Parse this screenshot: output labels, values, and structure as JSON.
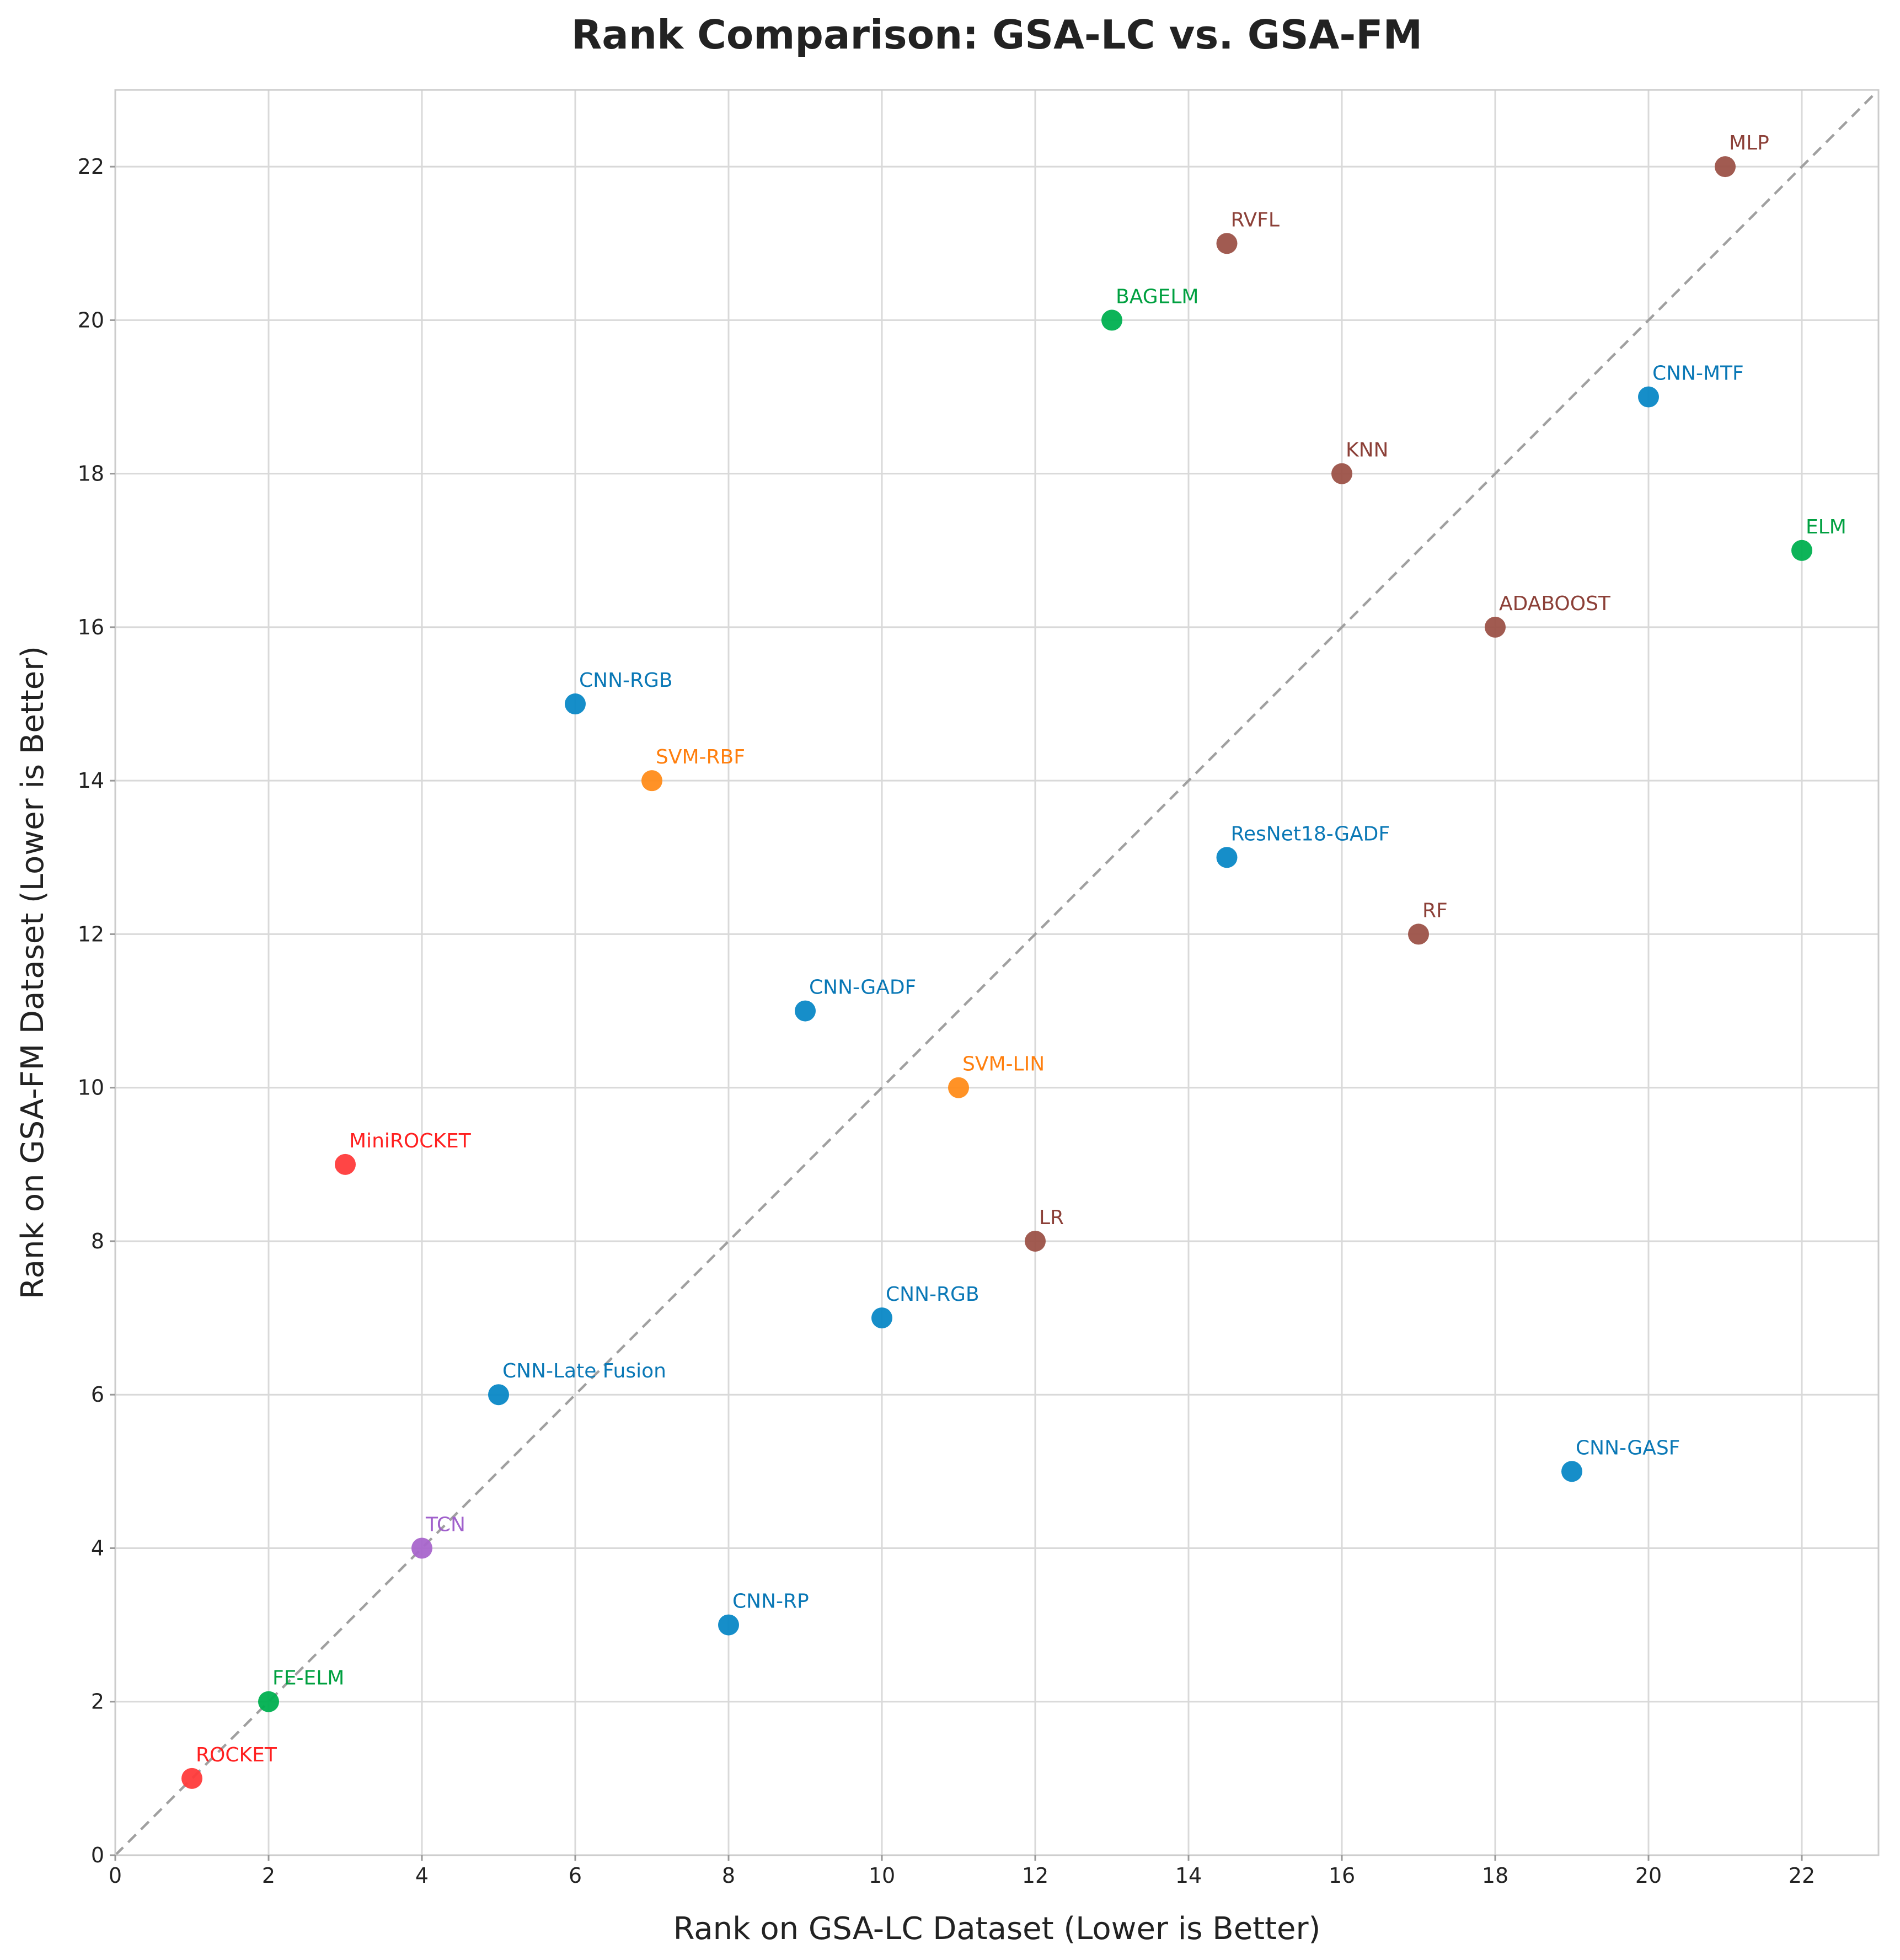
{
  "chart_data": {
    "type": "scatter",
    "title": "Rank Comparison: GSA-LC vs. GSA-FM",
    "xlabel": "Rank on GSA-LC Dataset (Lower is Better)",
    "ylabel": "Rank on GSA-FM Dataset (Lower is Better)",
    "xlim": [
      0,
      23
    ],
    "ylim": [
      0,
      23
    ],
    "xticks": [
      0,
      2,
      4,
      6,
      8,
      10,
      12,
      14,
      16,
      18,
      20,
      22
    ],
    "yticks": [
      0,
      2,
      4,
      6,
      8,
      10,
      12,
      14,
      16,
      18,
      20,
      22
    ],
    "grid": true,
    "reference_line": "y = x (dashed)",
    "colors": {
      "red": "#ff3b3b",
      "green": "#00b050",
      "purple": "#a966cc",
      "blue": "#0a88c6",
      "orange": "#ff8c1a",
      "brown": "#9c5248"
    },
    "label_colors": {
      "red": "#ff2020",
      "green": "#00a040",
      "purple": "#a060cc",
      "blue": "#0a78b6",
      "orange": "#ff7f0e",
      "brown": "#8c4038"
    },
    "points": [
      {
        "label": "ROCKET",
        "x": 1,
        "y": 1,
        "color": "red"
      },
      {
        "label": "FE-ELM",
        "x": 2,
        "y": 2,
        "color": "green"
      },
      {
        "label": "MiniROCKET",
        "x": 3,
        "y": 9,
        "color": "red"
      },
      {
        "label": "TCN",
        "x": 4,
        "y": 4,
        "color": "purple"
      },
      {
        "label": "CNN-Late Fusion",
        "x": 5,
        "y": 6,
        "color": "blue"
      },
      {
        "label": "CNN-RGB",
        "x": 6,
        "y": 15,
        "color": "blue"
      },
      {
        "label": "SVM-RBF",
        "x": 7,
        "y": 14,
        "color": "orange"
      },
      {
        "label": "CNN-RP",
        "x": 8,
        "y": 3,
        "color": "blue"
      },
      {
        "label": "CNN-GADF",
        "x": 9,
        "y": 11,
        "color": "blue"
      },
      {
        "label": "CNN-RGB",
        "x": 10,
        "y": 7,
        "color": "blue"
      },
      {
        "label": "SVM-LIN",
        "x": 11,
        "y": 10,
        "color": "orange"
      },
      {
        "label": "LR",
        "x": 12,
        "y": 8,
        "color": "brown"
      },
      {
        "label": "BAGELM",
        "x": 13,
        "y": 20,
        "color": "green"
      },
      {
        "label": "RVFL",
        "x": 14.5,
        "y": 21,
        "color": "brown"
      },
      {
        "label": "ResNet18-GADF",
        "x": 14.5,
        "y": 13,
        "color": "blue"
      },
      {
        "label": "KNN",
        "x": 16,
        "y": 18,
        "color": "brown"
      },
      {
        "label": "RF",
        "x": 17,
        "y": 12,
        "color": "brown"
      },
      {
        "label": "ADABOOST",
        "x": 18,
        "y": 16,
        "color": "brown"
      },
      {
        "label": "CNN-GASF",
        "x": 19,
        "y": 5,
        "color": "blue"
      },
      {
        "label": "CNN-MTF",
        "x": 20,
        "y": 19,
        "color": "blue"
      },
      {
        "label": "MLP",
        "x": 21,
        "y": 22,
        "color": "brown"
      },
      {
        "label": "ELM",
        "x": 22,
        "y": 17,
        "color": "green"
      }
    ]
  }
}
